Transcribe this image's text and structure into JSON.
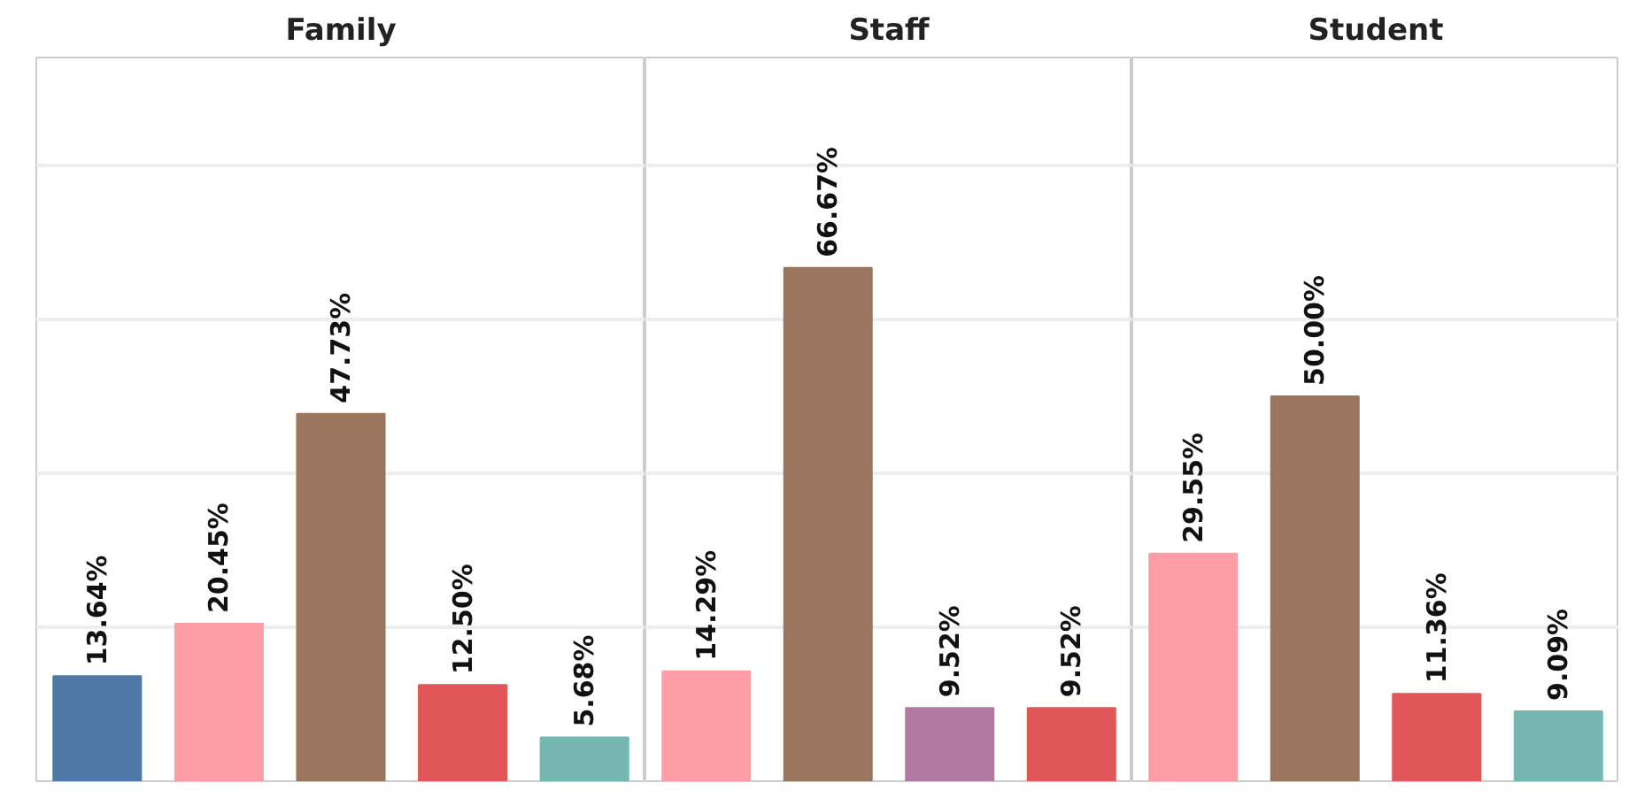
{
  "chart_data": [
    {
      "type": "bar",
      "title": "Family",
      "categories": [
        null,
        null,
        null,
        null,
        null
      ],
      "values": [
        13.64,
        20.45,
        47.73,
        12.5,
        5.68
      ],
      "colors": [
        "#4e79a7",
        "#ff9da7",
        "#9c755f",
        "#e15759",
        "#76b7b2"
      ],
      "value_labels": [
        "13.64%",
        "20.45%",
        "47.73%",
        "12.50%",
        "5.68%"
      ],
      "ylim": [
        0,
        94
      ],
      "yticks": [
        {
          "value": 20,
          "label": null
        },
        {
          "value": 40,
          "label": null
        },
        {
          "value": 60,
          "label": null
        },
        {
          "value": 80,
          "label": null
        }
      ],
      "grid": "y",
      "tick_labels": false
    },
    {
      "type": "bar",
      "title": "Staff",
      "categories": [
        null,
        null,
        null,
        null
      ],
      "values": [
        14.29,
        66.67,
        9.52,
        9.52
      ],
      "colors": [
        "#ff9da7",
        "#9c755f",
        "#b07aa1",
        "#e15759"
      ],
      "value_labels": [
        "14.29%",
        "66.67%",
        "9.52%",
        "9.52%"
      ],
      "ylim": [
        0,
        94
      ],
      "yticks": [
        {
          "value": 20,
          "label": null
        },
        {
          "value": 40,
          "label": null
        },
        {
          "value": 60,
          "label": null
        },
        {
          "value": 80,
          "label": null
        }
      ],
      "grid": "y",
      "tick_labels": false
    },
    {
      "type": "bar",
      "title": "Student",
      "categories": [
        null,
        null,
        null,
        null
      ],
      "values": [
        29.55,
        50.0,
        11.36,
        9.09
      ],
      "colors": [
        "#ff9da7",
        "#9c755f",
        "#e15759",
        "#76b7b2"
      ],
      "value_labels": [
        "29.55%",
        "50.00%",
        "11.36%",
        "9.09%"
      ],
      "ylim": [
        0,
        94
      ],
      "yticks": [
        {
          "value": 20,
          "label": null
        },
        {
          "value": 40,
          "label": null
        },
        {
          "value": 60,
          "label": null
        },
        {
          "value": 80,
          "label": null
        }
      ],
      "grid": "y",
      "tick_labels": false
    }
  ]
}
